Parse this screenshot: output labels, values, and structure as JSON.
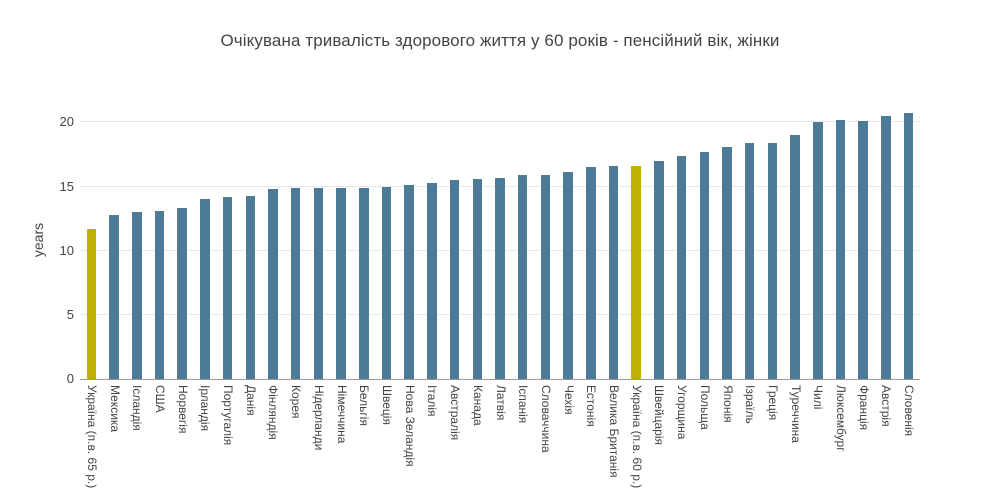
{
  "chart_data": {
    "type": "bar",
    "title": "Очікувана тривалість здорового життя у 60 років - пенсійний вік, жінки",
    "xlabel": "",
    "ylabel": "years",
    "yticks": [
      0,
      5,
      10,
      15,
      20
    ],
    "ylim": [
      0,
      21.75
    ],
    "grid": true,
    "legend": false,
    "bar_color": "#4d7b97",
    "highlight_color": "#c0b000",
    "highlight_indices": [
      0,
      24
    ],
    "categories": [
      "Україна (п.в. 65 р.)",
      "Мексика",
      "Ісландія",
      "США",
      "Норвегія",
      "Ірландія",
      "Португалія",
      "Данія",
      "Фінляндія",
      "Корея",
      "Нідерланди",
      "Німеччина",
      "Бельгія",
      "Швеція",
      "Нова Зеландія",
      "Італія",
      "Австралія",
      "Канада",
      "Латвія",
      "Іспанія",
      "Словаччина",
      "Чехія",
      "Естонія",
      "Велика Британія",
      "Україна (п.в. 60 р.)",
      "Швейцарія",
      "Угорщина",
      "Польща",
      "Японія",
      "Ізраїль",
      "Греція",
      "Туреччина",
      "Чилі",
      "Люксембург",
      "Франція",
      "Австрія",
      "Словенія"
    ],
    "values": [
      11.7,
      12.8,
      13.0,
      13.1,
      13.3,
      14.0,
      14.2,
      14.3,
      14.8,
      14.9,
      14.9,
      14.9,
      14.9,
      15.0,
      15.1,
      15.3,
      15.5,
      15.6,
      15.7,
      15.9,
      15.9,
      16.1,
      16.5,
      16.6,
      16.6,
      17.0,
      17.4,
      17.7,
      18.1,
      18.4,
      18.4,
      19.0,
      20.0,
      20.2,
      20.1,
      20.5,
      20.7
    ],
    "text_color": "#444444",
    "gridline_color": "#e9e9e9",
    "axis_line_color": "#9a9a9a"
  }
}
